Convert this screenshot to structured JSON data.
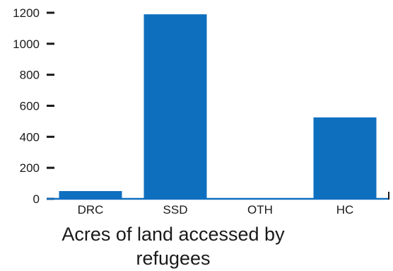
{
  "chart_data": {
    "type": "bar",
    "categories": [
      "DRC",
      "SSD",
      "OTH",
      "HC"
    ],
    "values": [
      50,
      1190,
      0,
      525
    ],
    "title": "",
    "xlabel": "Acres of land accessed by refugees",
    "xlabel_lines": [
      "Acres of land accessed by",
      "refugees"
    ],
    "ylabel": "",
    "ylim": [
      0,
      1200
    ],
    "yticks": [
      0,
      200,
      400,
      600,
      800,
      1000,
      1200
    ],
    "grid": false,
    "legend": "none",
    "colors": {
      "bar": "#0f6fbf",
      "axis": "#0f6fbf",
      "tick": "#1a1a1a",
      "text": "#1a1a1a"
    }
  }
}
